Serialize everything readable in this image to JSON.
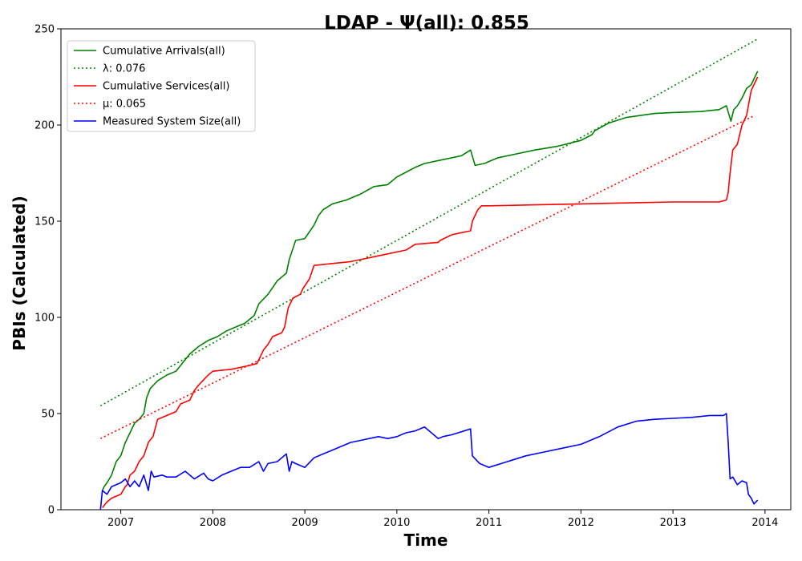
{
  "chart_data": {
    "type": "line",
    "title": "LDAP -  Ψ(all): 0.855",
    "xlabel": "Time",
    "ylabel": "PBIs (Calculated)",
    "xlim": [
      2006.35,
      2014.28
    ],
    "ylim": [
      0,
      250
    ],
    "x_ticks": [
      2007,
      2008,
      2009,
      2010,
      2011,
      2012,
      2013,
      2014
    ],
    "x_tick_labels": [
      "2007",
      "2008",
      "2009",
      "2010",
      "2011",
      "2012",
      "2013",
      "2014"
    ],
    "y_ticks": [
      0,
      50,
      100,
      150,
      200,
      250
    ],
    "y_tick_labels": [
      "0",
      "50",
      "100",
      "150",
      "200",
      "250"
    ],
    "grid": false,
    "legend_position": "top-left",
    "series": [
      {
        "name": "Cumulative Arrivals(all)",
        "color": "#008000",
        "style": "solid",
        "x": [
          2006.8,
          2006.82,
          2006.85,
          2006.9,
          2006.95,
          2007.0,
          2007.05,
          2007.1,
          2007.15,
          2007.2,
          2007.25,
          2007.28,
          2007.32,
          2007.36,
          2007.4,
          2007.5,
          2007.6,
          2007.65,
          2007.75,
          2007.85,
          2007.95,
          2008.05,
          2008.15,
          2008.25,
          2008.35,
          2008.45,
          2008.5,
          2008.6,
          2008.7,
          2008.8,
          2008.83,
          2008.9,
          2009.0,
          2009.1,
          2009.15,
          2009.2,
          2009.3,
          2009.45,
          2009.6,
          2009.75,
          2009.9,
          2010.0,
          2010.2,
          2010.3,
          2010.5,
          2010.7,
          2010.8,
          2010.85,
          2010.95,
          2011.1,
          2011.3,
          2011.5,
          2011.75,
          2012.0,
          2012.12,
          2012.15,
          2012.3,
          2012.5,
          2012.8,
          2013.0,
          2013.3,
          2013.5,
          2013.58,
          2013.63,
          2013.66,
          2013.7,
          2013.75,
          2013.8,
          2013.85,
          2013.9,
          2013.92
        ],
        "y": [
          10,
          12,
          14,
          18,
          25,
          28,
          35,
          40,
          45,
          47,
          50,
          58,
          63,
          65,
          67,
          70,
          72,
          75,
          81,
          85,
          88,
          90,
          93,
          95,
          97,
          101,
          107,
          112,
          119,
          123,
          130,
          140,
          141,
          148,
          153,
          156,
          159,
          161,
          164,
          168,
          169,
          173,
          178,
          180,
          182,
          184,
          187,
          179,
          180,
          183,
          185,
          187,
          189,
          192,
          195,
          197,
          201,
          204,
          206,
          206.5,
          207,
          208,
          210,
          202,
          208,
          210,
          214,
          219,
          221,
          226,
          228
        ]
      },
      {
        "name": "λ: 0.076",
        "color": "#008000",
        "style": "dotted",
        "x": [
          2006.78,
          2013.93
        ],
        "y": [
          54,
          245
        ]
      },
      {
        "name": "Cumulative Services(all)",
        "color": "#ff0000",
        "style": "solid",
        "x": [
          2006.8,
          2006.85,
          2006.9,
          2007.0,
          2007.05,
          2007.07,
          2007.1,
          2007.15,
          2007.2,
          2007.25,
          2007.3,
          2007.35,
          2007.4,
          2007.6,
          2007.65,
          2007.75,
          2007.8,
          2007.85,
          2007.95,
          2008.0,
          2008.2,
          2008.3,
          2008.4,
          2008.48,
          2008.55,
          2008.6,
          2008.65,
          2008.75,
          2008.78,
          2008.82,
          2008.87,
          2008.95,
          2008.98,
          2009.05,
          2009.1,
          2009.3,
          2009.5,
          2009.6,
          2009.8,
          2009.9,
          2010.0,
          2010.1,
          2010.2,
          2010.45,
          2010.47,
          2010.6,
          2010.8,
          2010.82,
          2010.88,
          2010.92,
          2011.0,
          2011.5,
          2012.0,
          2012.5,
          2013.0,
          2013.5,
          2013.58,
          2013.6,
          2013.62,
          2013.65,
          2013.7,
          2013.75,
          2013.8,
          2013.85,
          2013.92
        ],
        "y": [
          1,
          4,
          6,
          8,
          12,
          13,
          18,
          20,
          25,
          28,
          35,
          38,
          47,
          51,
          55,
          57,
          62,
          65,
          70,
          72,
          73,
          74,
          75,
          76,
          83,
          86,
          90,
          92,
          95,
          105,
          110,
          112,
          115,
          120,
          127,
          128,
          129,
          130,
          132,
          133,
          134,
          135,
          138,
          139,
          140,
          143,
          145,
          150,
          156,
          158,
          158,
          158.5,
          159,
          159.5,
          160,
          160,
          161,
          165,
          175,
          187,
          190,
          200,
          205,
          218,
          225
        ]
      },
      {
        "name": "μ: 0.065",
        "color": "#ff0000",
        "style": "dotted",
        "x": [
          2006.78,
          2013.89
        ],
        "y": [
          37,
          205
        ]
      },
      {
        "name": "Measured System Size(all)",
        "color": "#0000ff",
        "style": "solid",
        "x": [
          2006.78,
          2006.8,
          2006.85,
          2006.9,
          2007.0,
          2007.05,
          2007.1,
          2007.15,
          2007.2,
          2007.25,
          2007.3,
          2007.33,
          2007.36,
          2007.45,
          2007.5,
          2007.6,
          2007.7,
          2007.8,
          2007.9,
          2007.95,
          2008.0,
          2008.1,
          2008.2,
          2008.3,
          2008.4,
          2008.5,
          2008.55,
          2008.6,
          2008.7,
          2008.75,
          2008.8,
          2008.83,
          2008.86,
          2008.9,
          2009.0,
          2009.1,
          2009.2,
          2009.3,
          2009.4,
          2009.5,
          2009.6,
          2009.7,
          2009.8,
          2009.9,
          2010.0,
          2010.1,
          2010.2,
          2010.3,
          2010.45,
          2010.5,
          2010.6,
          2010.8,
          2010.82,
          2010.9,
          2011.0,
          2011.2,
          2011.4,
          2011.6,
          2011.8,
          2012.0,
          2012.2,
          2012.4,
          2012.6,
          2012.8,
          2013.0,
          2013.2,
          2013.4,
          2013.55,
          2013.58,
          2013.6,
          2013.62,
          2013.65,
          2013.7,
          2013.75,
          2013.8,
          2013.82,
          2013.85,
          2013.88,
          2013.92
        ],
        "y": [
          0,
          10,
          8,
          12,
          14,
          16,
          12,
          15,
          12,
          18,
          10,
          20,
          17,
          18,
          17,
          17,
          20,
          16,
          19,
          16,
          15,
          18,
          20,
          22,
          22,
          25,
          20,
          24,
          25,
          27,
          29,
          20,
          25,
          24,
          22,
          27,
          29,
          31,
          33,
          35,
          36,
          37,
          38,
          37,
          38,
          40,
          41,
          43,
          37,
          38,
          39,
          42,
          28,
          24,
          22,
          25,
          28,
          30,
          32,
          34,
          38,
          43,
          46,
          47,
          47.5,
          48,
          49,
          49,
          50,
          35,
          16,
          17,
          13,
          15,
          14,
          8,
          6,
          3,
          5
        ]
      }
    ]
  }
}
